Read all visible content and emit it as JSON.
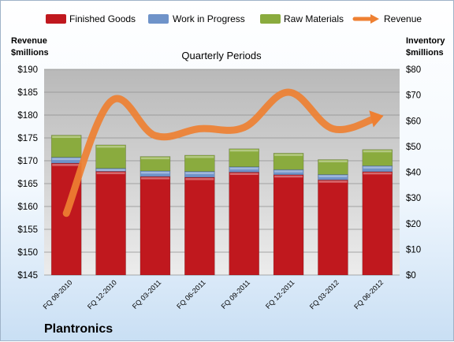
{
  "chart_data": {
    "type": "bar",
    "stacked": true,
    "title": "Quarterly Periods",
    "company": "Plantronics",
    "categories": [
      "FQ 09-2010",
      "FQ 12-2010",
      "FQ 03-2011",
      "FQ 06-2011",
      "FQ 09-2011",
      "FQ 12-2011",
      "FQ 03-2012",
      "FQ 06-2012"
    ],
    "series": [
      {
        "name": "Finished Goods",
        "axis": "right",
        "color": "#c0181e",
        "values": [
          43.5,
          40.3,
          38.3,
          38.0,
          40.0,
          39.0,
          37.0,
          40.2
        ]
      },
      {
        "name": "Work in Progress",
        "axis": "right",
        "color": "#6f93c9",
        "values": [
          2.3,
          1.2,
          2.2,
          2.3,
          2.1,
          2.0,
          2.1,
          2.3
        ]
      },
      {
        "name": "Raw Materials",
        "axis": "right",
        "color": "#8aab3e",
        "values": [
          8.6,
          9.1,
          5.6,
          6.3,
          7.0,
          6.4,
          5.8,
          6.3
        ]
      },
      {
        "name": "Revenue",
        "axis": "left",
        "type": "line",
        "color": "#ee8032",
        "values": [
          158.5,
          183.0,
          175.5,
          177.0,
          177.3,
          185.0,
          177.0,
          179.5
        ]
      }
    ],
    "y_left": {
      "label_line1": "Revenue",
      "label_line2": "$millions",
      "min": 145,
      "max": 190,
      "step": 5,
      "ticks": [
        "$145",
        "$150",
        "$155",
        "$160",
        "$165",
        "$170",
        "$175",
        "$180",
        "$185",
        "$190"
      ]
    },
    "y_right": {
      "label_line1": "Inventory",
      "label_line2": "$millions",
      "min": 0,
      "max": 80,
      "step": 10,
      "ticks": [
        "$0",
        "$10",
        "$20",
        "$30",
        "$40",
        "$50",
        "$60",
        "$70",
        "$80"
      ]
    },
    "legend_position": "top",
    "grid": true
  }
}
